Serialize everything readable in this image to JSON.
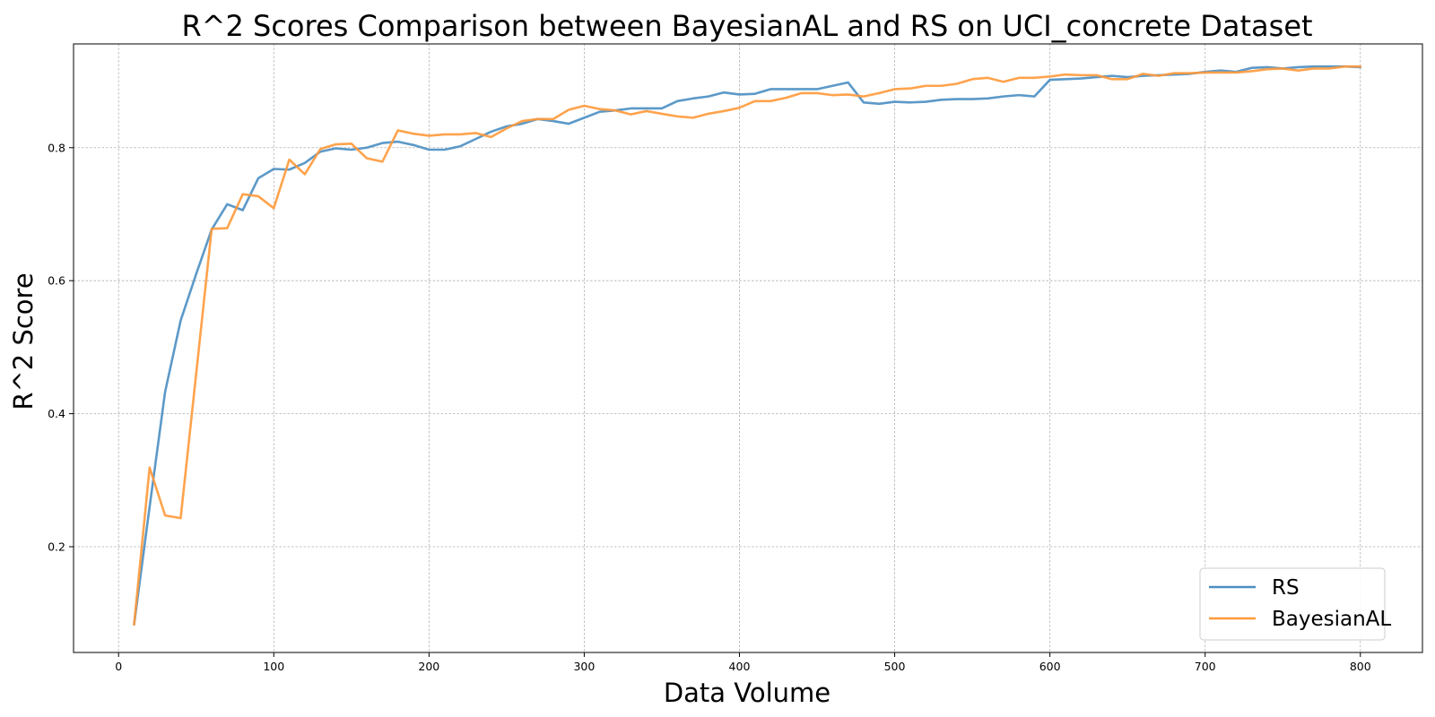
{
  "chart_data": {
    "type": "line",
    "title": "R^2 Scores Comparison between BayesianAL and RS on UCI_concrete Dataset",
    "xlabel": "Data Volume",
    "ylabel": "R^2 Score",
    "xlim": [
      -29,
      840
    ],
    "ylim": [
      0.041,
      0.956
    ],
    "xticks": [
      0,
      100,
      200,
      300,
      400,
      500,
      600,
      700,
      800
    ],
    "yticks": [
      0.2,
      0.4,
      0.6,
      0.8
    ],
    "xtick_labels": [
      "0",
      "100",
      "200",
      "300",
      "400",
      "500",
      "600",
      "700",
      "800"
    ],
    "ytick_labels": [
      "0.2",
      "0.4",
      "0.6",
      "0.8"
    ],
    "grid": true,
    "legend_position": "bottom-right",
    "colors": {
      "RS": "#4a8ec2",
      "BayesianAL": "#ff993a"
    },
    "x": [
      10,
      20,
      30,
      40,
      50,
      60,
      70,
      80,
      90,
      100,
      110,
      120,
      130,
      140,
      150,
      160,
      170,
      180,
      190,
      200,
      210,
      220,
      230,
      240,
      250,
      260,
      270,
      280,
      290,
      300,
      310,
      320,
      330,
      340,
      350,
      360,
      370,
      380,
      390,
      400,
      410,
      420,
      430,
      440,
      450,
      460,
      470,
      480,
      490,
      500,
      510,
      520,
      530,
      540,
      550,
      560,
      570,
      580,
      590,
      600,
      610,
      620,
      630,
      640,
      650,
      660,
      670,
      680,
      690,
      700,
      710,
      720,
      730,
      740,
      750,
      760,
      770,
      780,
      790,
      800
    ],
    "series": [
      {
        "name": "RS",
        "values": [
          0.083,
          0.26,
          0.433,
          0.54,
          0.61,
          0.677,
          0.715,
          0.706,
          0.754,
          0.768,
          0.767,
          0.777,
          0.794,
          0.799,
          0.797,
          0.8,
          0.807,
          0.809,
          0.804,
          0.797,
          0.797,
          0.802,
          0.813,
          0.824,
          0.832,
          0.836,
          0.843,
          0.84,
          0.836,
          0.845,
          0.854,
          0.856,
          0.859,
          0.859,
          0.859,
          0.87,
          0.874,
          0.877,
          0.883,
          0.88,
          0.881,
          0.888,
          0.888,
          0.888,
          0.888,
          0.893,
          0.898,
          0.868,
          0.866,
          0.869,
          0.868,
          0.869,
          0.872,
          0.873,
          0.873,
          0.874,
          0.877,
          0.879,
          0.877,
          0.902,
          0.903,
          0.904,
          0.906,
          0.908,
          0.906,
          0.908,
          0.909,
          0.91,
          0.911,
          0.914,
          0.916,
          0.914,
          0.92,
          0.921,
          0.919,
          0.921,
          0.922,
          0.922,
          0.922,
          0.921
        ]
      },
      {
        "name": "BayesianAL",
        "values": [
          0.083,
          0.319,
          0.247,
          0.243,
          0.46,
          0.678,
          0.679,
          0.73,
          0.727,
          0.709,
          0.782,
          0.76,
          0.798,
          0.805,
          0.806,
          0.784,
          0.779,
          0.826,
          0.821,
          0.818,
          0.82,
          0.82,
          0.822,
          0.816,
          0.829,
          0.84,
          0.843,
          0.843,
          0.857,
          0.863,
          0.858,
          0.856,
          0.85,
          0.855,
          0.851,
          0.847,
          0.845,
          0.851,
          0.855,
          0.86,
          0.87,
          0.87,
          0.875,
          0.882,
          0.882,
          0.879,
          0.88,
          0.877,
          0.882,
          0.888,
          0.889,
          0.893,
          0.893,
          0.896,
          0.903,
          0.905,
          0.899,
          0.905,
          0.905,
          0.907,
          0.91,
          0.909,
          0.909,
          0.903,
          0.903,
          0.911,
          0.908,
          0.912,
          0.912,
          0.913,
          0.913,
          0.913,
          0.915,
          0.918,
          0.919,
          0.916,
          0.919,
          0.919,
          0.922,
          0.922
        ]
      }
    ]
  }
}
